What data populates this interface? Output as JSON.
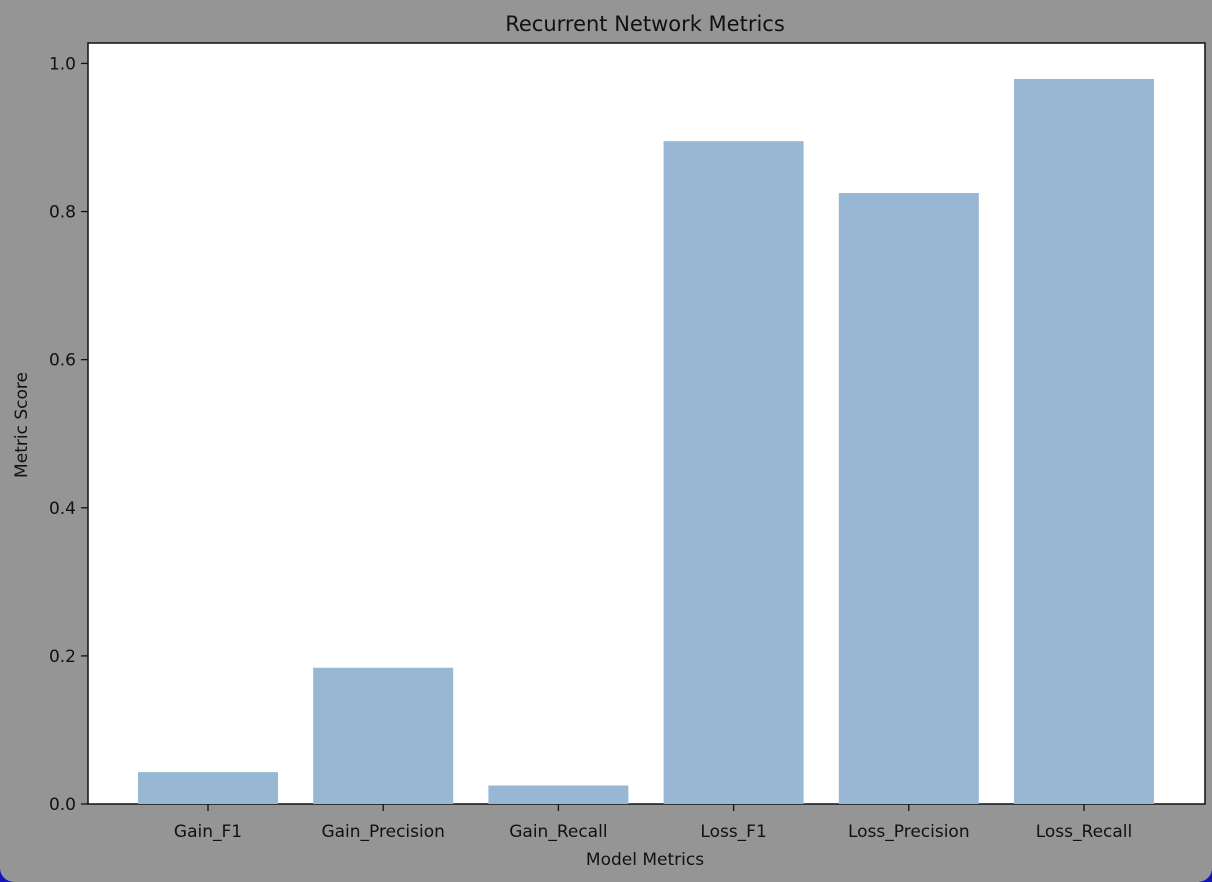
{
  "colors": {
    "window_background": "#959595",
    "plot_background": "#ffffff",
    "bar_fill": "#97b7d4",
    "axis": "#111111"
  },
  "chart_data": {
    "type": "bar",
    "title": "Recurrent Network Metrics",
    "xlabel": "Model Metrics",
    "ylabel": "Metric Score",
    "categories": [
      "Gain_F1",
      "Gain_Precision",
      "Gain_Recall",
      "Loss_F1",
      "Loss_Precision",
      "Loss_Recall"
    ],
    "values": [
      0.043,
      0.184,
      0.025,
      0.895,
      0.825,
      0.979
    ],
    "ylim": [
      0,
      1.0276
    ],
    "yticks": [
      0.0,
      0.2,
      0.4,
      0.6,
      0.8,
      1.0
    ],
    "ytick_labels": [
      "0.0",
      "0.2",
      "0.4",
      "0.6",
      "0.8",
      "1.0"
    ],
    "grid": false,
    "legend": "none"
  }
}
